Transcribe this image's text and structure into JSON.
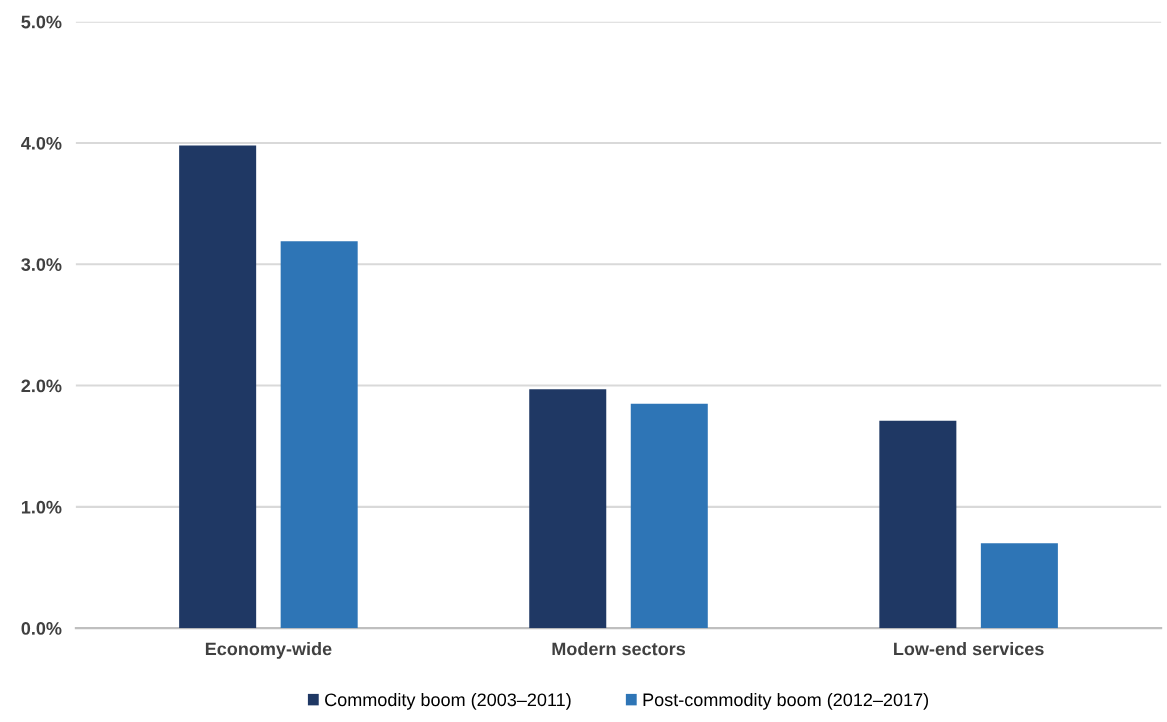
{
  "chart_data": {
    "type": "bar",
    "categories": [
      "Economy-wide",
      "Modern sectors",
      "Low-end services"
    ],
    "series": [
      {
        "name": "Commodity boom (2003–2011)",
        "color": "#1f3864",
        "values": [
          3.98,
          1.97,
          1.71
        ]
      },
      {
        "name": "Post-commodity boom (2012–2017)",
        "color": "#2e75b6",
        "values": [
          3.19,
          1.85,
          0.7
        ]
      }
    ],
    "ylim": [
      0,
      5
    ],
    "yticks": [
      {
        "value": 0,
        "label": "0.0%"
      },
      {
        "value": 1,
        "label": "1.0%"
      },
      {
        "value": 2,
        "label": "2.0%"
      },
      {
        "value": 3,
        "label": "3.0%"
      },
      {
        "value": 4,
        "label": "4.0%"
      },
      {
        "value": 5,
        "label": "5.0%"
      }
    ],
    "grid": "y",
    "legend": "bottom"
  }
}
